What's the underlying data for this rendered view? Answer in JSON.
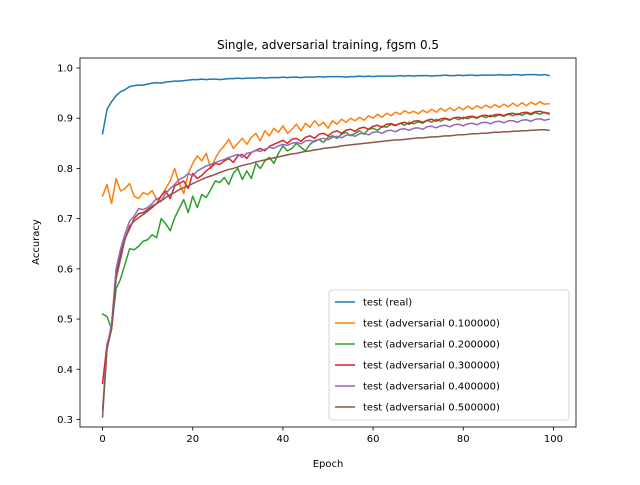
{
  "chart_data": {
    "type": "line",
    "title": "Single, adversarial training, fgsm 0.5",
    "xlabel": "Epoch",
    "ylabel": "Accuracy",
    "xlim": [
      -5,
      105
    ],
    "ylim": [
      0.285,
      1.02
    ],
    "xticks": [
      0,
      20,
      40,
      60,
      80,
      100
    ],
    "yticks": [
      0.3,
      0.4,
      0.5,
      0.6,
      0.7,
      0.8,
      0.9,
      1.0
    ],
    "xtick_labels": [
      "0",
      "20",
      "40",
      "60",
      "80",
      "100"
    ],
    "ytick_labels": [
      "0.3",
      "0.4",
      "0.5",
      "0.6",
      "0.7",
      "0.8",
      "0.9",
      "1.0"
    ],
    "grid": false,
    "legend_position": "lower-right",
    "series": [
      {
        "name": "test (real)",
        "color": "#1f77b4",
        "values": [
          0.869,
          0.918,
          0.933,
          0.945,
          0.953,
          0.957,
          0.963,
          0.965,
          0.966,
          0.966,
          0.968,
          0.97,
          0.971,
          0.97,
          0.972,
          0.973,
          0.974,
          0.974,
          0.975,
          0.976,
          0.977,
          0.977,
          0.978,
          0.977,
          0.978,
          0.978,
          0.977,
          0.978,
          0.979,
          0.979,
          0.98,
          0.979,
          0.98,
          0.98,
          0.98,
          0.981,
          0.98,
          0.981,
          0.981,
          0.981,
          0.982,
          0.981,
          0.982,
          0.982,
          0.981,
          0.982,
          0.982,
          0.982,
          0.983,
          0.982,
          0.983,
          0.983,
          0.983,
          0.983,
          0.982,
          0.983,
          0.983,
          0.984,
          0.983,
          0.984,
          0.983,
          0.984,
          0.984,
          0.984,
          0.984,
          0.984,
          0.985,
          0.984,
          0.985,
          0.984,
          0.985,
          0.985,
          0.985,
          0.984,
          0.985,
          0.985,
          0.986,
          0.985,
          0.985,
          0.986,
          0.985,
          0.986,
          0.986,
          0.985,
          0.986,
          0.986,
          0.986,
          0.986,
          0.987,
          0.986,
          0.986,
          0.987,
          0.987,
          0.986,
          0.987,
          0.987,
          0.987,
          0.986,
          0.987,
          0.985
        ]
      },
      {
        "name": "test (adversarial 0.100000)",
        "color": "#ff7f0e",
        "values": [
          0.745,
          0.768,
          0.73,
          0.78,
          0.755,
          0.76,
          0.77,
          0.745,
          0.74,
          0.752,
          0.748,
          0.756,
          0.738,
          0.745,
          0.76,
          0.775,
          0.8,
          0.77,
          0.75,
          0.79,
          0.81,
          0.825,
          0.815,
          0.83,
          0.8,
          0.82,
          0.835,
          0.845,
          0.858,
          0.84,
          0.85,
          0.86,
          0.848,
          0.862,
          0.87,
          0.855,
          0.875,
          0.865,
          0.88,
          0.872,
          0.885,
          0.87,
          0.878,
          0.888,
          0.875,
          0.89,
          0.882,
          0.895,
          0.885,
          0.892,
          0.88,
          0.895,
          0.888,
          0.898,
          0.892,
          0.9,
          0.895,
          0.902,
          0.896,
          0.905,
          0.9,
          0.908,
          0.902,
          0.91,
          0.905,
          0.912,
          0.908,
          0.915,
          0.91,
          0.914,
          0.909,
          0.916,
          0.911,
          0.918,
          0.912,
          0.92,
          0.914,
          0.921,
          0.915,
          0.922,
          0.917,
          0.924,
          0.918,
          0.925,
          0.92,
          0.926,
          0.921,
          0.927,
          0.922,
          0.928,
          0.923,
          0.93,
          0.924,
          0.931,
          0.925,
          0.932,
          0.927,
          0.933,
          0.928,
          0.929
        ]
      },
      {
        "name": "test (adversarial 0.200000)",
        "color": "#2ca02c",
        "values": [
          0.51,
          0.505,
          0.48,
          0.56,
          0.58,
          0.61,
          0.64,
          0.638,
          0.645,
          0.655,
          0.658,
          0.668,
          0.662,
          0.7,
          0.69,
          0.676,
          0.702,
          0.72,
          0.738,
          0.712,
          0.745,
          0.722,
          0.748,
          0.742,
          0.758,
          0.775,
          0.772,
          0.782,
          0.768,
          0.79,
          0.8,
          0.778,
          0.795,
          0.78,
          0.81,
          0.8,
          0.815,
          0.822,
          0.81,
          0.83,
          0.845,
          0.835,
          0.84,
          0.85,
          0.842,
          0.835,
          0.848,
          0.855,
          0.858,
          0.852,
          0.862,
          0.865,
          0.86,
          0.868,
          0.872,
          0.865,
          0.87,
          0.875,
          0.868,
          0.878,
          0.88,
          0.876,
          0.884,
          0.882,
          0.888,
          0.885,
          0.89,
          0.886,
          0.892,
          0.889,
          0.893,
          0.89,
          0.896,
          0.892,
          0.898,
          0.894,
          0.899,
          0.896,
          0.901,
          0.897,
          0.902,
          0.899,
          0.903,
          0.9,
          0.905,
          0.901,
          0.906,
          0.903,
          0.907,
          0.904,
          0.908,
          0.905,
          0.909,
          0.906,
          0.91,
          0.907,
          0.911,
          0.908,
          0.912,
          0.908
        ]
      },
      {
        "name": "test (adversarial 0.300000)",
        "color": "#d62728",
        "values": [
          0.372,
          0.45,
          0.48,
          0.59,
          0.63,
          0.66,
          0.68,
          0.7,
          0.71,
          0.712,
          0.718,
          0.725,
          0.73,
          0.745,
          0.755,
          0.74,
          0.765,
          0.77,
          0.775,
          0.76,
          0.79,
          0.78,
          0.786,
          0.795,
          0.802,
          0.81,
          0.808,
          0.815,
          0.82,
          0.812,
          0.825,
          0.828,
          0.82,
          0.832,
          0.836,
          0.84,
          0.835,
          0.844,
          0.848,
          0.852,
          0.856,
          0.85,
          0.858,
          0.86,
          0.854,
          0.862,
          0.865,
          0.86,
          0.868,
          0.87,
          0.865,
          0.872,
          0.875,
          0.87,
          0.876,
          0.878,
          0.874,
          0.88,
          0.882,
          0.878,
          0.884,
          0.886,
          0.882,
          0.888,
          0.889,
          0.886,
          0.89,
          0.892,
          0.888,
          0.894,
          0.895,
          0.892,
          0.896,
          0.898,
          0.894,
          0.899,
          0.9,
          0.897,
          0.901,
          0.902,
          0.899,
          0.903,
          0.904,
          0.901,
          0.905,
          0.906,
          0.903,
          0.907,
          0.908,
          0.905,
          0.909,
          0.91,
          0.907,
          0.911,
          0.912,
          0.909,
          0.913,
          0.914,
          0.911,
          0.91
        ]
      },
      {
        "name": "test (adversarial 0.400000)",
        "color": "#9467bd",
        "values": [
          0.32,
          0.445,
          0.49,
          0.6,
          0.64,
          0.67,
          0.695,
          0.705,
          0.72,
          0.718,
          0.722,
          0.73,
          0.74,
          0.735,
          0.75,
          0.76,
          0.768,
          0.778,
          0.782,
          0.79,
          0.785,
          0.795,
          0.8,
          0.805,
          0.808,
          0.812,
          0.815,
          0.818,
          0.822,
          0.825,
          0.828,
          0.822,
          0.83,
          0.832,
          0.836,
          0.834,
          0.838,
          0.842,
          0.84,
          0.845,
          0.848,
          0.846,
          0.85,
          0.852,
          0.849,
          0.855,
          0.856,
          0.853,
          0.858,
          0.86,
          0.857,
          0.862,
          0.864,
          0.861,
          0.866,
          0.867,
          0.864,
          0.869,
          0.87,
          0.867,
          0.872,
          0.873,
          0.87,
          0.875,
          0.876,
          0.873,
          0.878,
          0.879,
          0.876,
          0.88,
          0.881,
          0.878,
          0.883,
          0.884,
          0.881,
          0.885,
          0.886,
          0.883,
          0.887,
          0.888,
          0.885,
          0.889,
          0.89,
          0.887,
          0.891,
          0.892,
          0.889,
          0.893,
          0.894,
          0.891,
          0.895,
          0.895,
          0.892,
          0.896,
          0.897,
          0.894,
          0.898,
          0.899,
          0.896,
          0.898
        ]
      },
      {
        "name": "test (adversarial 0.500000)",
        "color": "#8c564b",
        "values": [
          0.305,
          0.44,
          0.48,
          0.58,
          0.62,
          0.66,
          0.685,
          0.695,
          0.702,
          0.708,
          0.715,
          0.722,
          0.73,
          0.735,
          0.742,
          0.748,
          0.752,
          0.758,
          0.762,
          0.765,
          0.77,
          0.774,
          0.778,
          0.782,
          0.785,
          0.788,
          0.792,
          0.795,
          0.798,
          0.8,
          0.803,
          0.806,
          0.808,
          0.81,
          0.813,
          0.815,
          0.817,
          0.819,
          0.821,
          0.823,
          0.825,
          0.827,
          0.829,
          0.83,
          0.832,
          0.834,
          0.835,
          0.837,
          0.838,
          0.84,
          0.841,
          0.842,
          0.843,
          0.845,
          0.846,
          0.847,
          0.848,
          0.849,
          0.85,
          0.851,
          0.852,
          0.853,
          0.854,
          0.855,
          0.856,
          0.857,
          0.857,
          0.858,
          0.859,
          0.86,
          0.861,
          0.861,
          0.862,
          0.863,
          0.863,
          0.864,
          0.865,
          0.865,
          0.866,
          0.867,
          0.867,
          0.868,
          0.869,
          0.869,
          0.87,
          0.87,
          0.871,
          0.872,
          0.872,
          0.873,
          0.873,
          0.874,
          0.874,
          0.875,
          0.875,
          0.876,
          0.876,
          0.877,
          0.877,
          0.876
        ]
      }
    ]
  }
}
